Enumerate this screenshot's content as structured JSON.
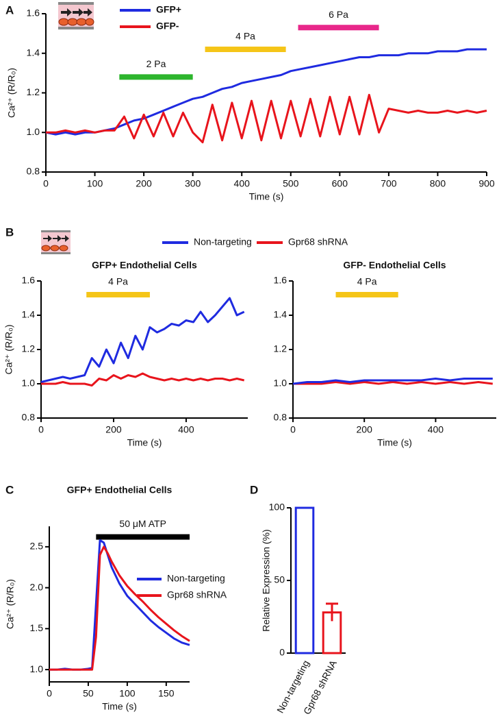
{
  "chart_data": [
    {
      "type": "line",
      "panel_label": "A",
      "ylabel": "Ca²⁺ (R/R₀)",
      "xlabel": "Time (s)",
      "xlim": [
        0,
        900
      ],
      "xticks": [
        0,
        100,
        200,
        300,
        400,
        500,
        600,
        700,
        800,
        900
      ],
      "ylim": [
        0.8,
        1.6
      ],
      "yticks": [
        0.8,
        {
          "value": 1.0,
          "label": "1.0"
        },
        1.2,
        1.4,
        1.6
      ],
      "x": [
        0,
        20,
        40,
        60,
        80,
        100,
        120,
        140,
        160,
        180,
        200,
        220,
        240,
        260,
        280,
        300,
        320,
        340,
        360,
        380,
        400,
        420,
        440,
        460,
        480,
        500,
        520,
        540,
        560,
        580,
        600,
        620,
        640,
        660,
        680,
        700,
        720,
        740,
        760,
        780,
        800,
        820,
        840,
        860,
        880,
        900
      ],
      "series": [
        {
          "name": "GFP+",
          "color": "#1f2be0",
          "values": [
            1.0,
            0.99,
            1.0,
            0.99,
            1.0,
            1.0,
            1.01,
            1.02,
            1.04,
            1.06,
            1.07,
            1.09,
            1.11,
            1.13,
            1.15,
            1.17,
            1.18,
            1.2,
            1.22,
            1.23,
            1.25,
            1.26,
            1.27,
            1.28,
            1.29,
            1.31,
            1.32,
            1.33,
            1.34,
            1.35,
            1.36,
            1.37,
            1.38,
            1.38,
            1.39,
            1.39,
            1.39,
            1.4,
            1.4,
            1.4,
            1.41,
            1.41,
            1.41,
            1.42,
            1.42,
            1.42
          ]
        },
        {
          "name": "GFP-",
          "color": "#e8141c",
          "values": [
            1.0,
            1.0,
            1.01,
            1.0,
            1.01,
            1.0,
            1.01,
            1.01,
            1.08,
            0.97,
            1.09,
            0.98,
            1.1,
            0.98,
            1.1,
            1.0,
            0.95,
            1.14,
            0.96,
            1.15,
            0.97,
            1.16,
            0.96,
            1.16,
            0.97,
            1.16,
            0.98,
            1.17,
            0.98,
            1.18,
            0.99,
            1.18,
            0.99,
            1.19,
            1.0,
            1.12,
            1.11,
            1.1,
            1.11,
            1.1,
            1.1,
            1.11,
            1.1,
            1.11,
            1.1,
            1.11
          ]
        }
      ],
      "annotations": [
        {
          "text": "2 Pa",
          "x": [
            150,
            300
          ],
          "y": 1.28,
          "color": "#2db52d"
        },
        {
          "text": "4 Pa",
          "x": [
            325,
            490
          ],
          "y": 1.42,
          "color": "#f5c518"
        },
        {
          "text": "6 Pa",
          "x": [
            515,
            680
          ],
          "y": 1.53,
          "color": "#e8278a"
        }
      ]
    },
    {
      "type": "line",
      "panel_label": "B",
      "title": "GFP+ Endothelial Cells",
      "ylabel": "Ca²⁺ (R/R₀)",
      "xlabel": "Time (s)",
      "xlim": [
        0,
        570
      ],
      "xticks": [
        0,
        200,
        400
      ],
      "ylim": [
        0.8,
        1.6
      ],
      "yticks": [
        0.8,
        {
          "value": 1.0,
          "label": "1.0"
        },
        1.2,
        1.4,
        1.6
      ],
      "x": [
        0,
        20,
        40,
        60,
        80,
        100,
        120,
        140,
        160,
        180,
        200,
        220,
        240,
        260,
        280,
        300,
        320,
        340,
        360,
        380,
        400,
        420,
        440,
        460,
        480,
        500,
        520,
        540,
        560
      ],
      "series": [
        {
          "name": "Non-targeting",
          "color": "#1f2be0",
          "values": [
            1.01,
            1.02,
            1.03,
            1.04,
            1.03,
            1.04,
            1.05,
            1.15,
            1.1,
            1.2,
            1.12,
            1.24,
            1.15,
            1.28,
            1.2,
            1.33,
            1.3,
            1.32,
            1.35,
            1.34,
            1.37,
            1.36,
            1.42,
            1.36,
            1.4,
            1.45,
            1.5,
            1.4,
            1.42
          ]
        },
        {
          "name": "Gpr68 shRNA",
          "color": "#e8141c",
          "values": [
            1.0,
            1.0,
            1.0,
            1.01,
            1.0,
            1.0,
            1.0,
            0.99,
            1.03,
            1.02,
            1.05,
            1.03,
            1.05,
            1.04,
            1.06,
            1.04,
            1.03,
            1.02,
            1.03,
            1.02,
            1.03,
            1.02,
            1.03,
            1.02,
            1.03,
            1.03,
            1.02,
            1.03,
            1.02
          ]
        }
      ],
      "annotations": [
        {
          "text": "4 Pa",
          "x": [
            125,
            300
          ],
          "y": 1.52,
          "color": "#f5c518"
        }
      ]
    },
    {
      "type": "line",
      "title": "GFP- Endothelial Cells",
      "xlabel": "Time (s)",
      "xlim": [
        0,
        570
      ],
      "xticks": [
        0,
        200,
        400
      ],
      "ylim": [
        0.8,
        1.6
      ],
      "yticks": [
        0.8,
        {
          "value": 1.0,
          "label": "1.0"
        },
        1.2,
        1.4,
        1.6
      ],
      "x": [
        0,
        40,
        80,
        120,
        160,
        200,
        240,
        280,
        320,
        360,
        400,
        440,
        480,
        520,
        560
      ],
      "series": [
        {
          "color": "#e8141c",
          "values": [
            1.0,
            1.0,
            1.0,
            1.01,
            1.0,
            1.01,
            1.0,
            1.01,
            1.0,
            1.01,
            1.0,
            1.01,
            1.0,
            1.01,
            1.0
          ]
        },
        {
          "color": "#1f2be0",
          "values": [
            1.0,
            1.01,
            1.01,
            1.02,
            1.01,
            1.02,
            1.02,
            1.02,
            1.02,
            1.02,
            1.03,
            1.02,
            1.03,
            1.03,
            1.03
          ]
        }
      ],
      "annotations": [
        {
          "text": "4 Pa",
          "x": [
            120,
            295
          ],
          "y": 1.52,
          "color": "#f5c518"
        }
      ]
    },
    {
      "type": "line",
      "panel_label": "C",
      "title": "GFP+ Endothelial Cells",
      "ylabel": "Ca²⁺ (R/R₀)",
      "xlabel": "Time (s)",
      "xlim": [
        0,
        180
      ],
      "xticks": [
        0,
        50,
        100,
        150
      ],
      "ylim": [
        0.85,
        2.75
      ],
      "yticks": [
        {
          "value": 1.0,
          "label": "1.0"
        },
        1.5,
        {
          "value": 2.0,
          "label": "2.0"
        },
        2.5
      ],
      "x": [
        0,
        10,
        20,
        30,
        40,
        50,
        55,
        60,
        65,
        70,
        75,
        80,
        90,
        100,
        110,
        120,
        130,
        140,
        150,
        160,
        170,
        180
      ],
      "series": [
        {
          "name": "Non-targeting",
          "color": "#1f2be0",
          "values": [
            1.0,
            1.0,
            1.01,
            1.0,
            1.0,
            1.01,
            1.02,
            1.8,
            2.58,
            2.55,
            2.4,
            2.25,
            2.05,
            1.9,
            1.8,
            1.7,
            1.6,
            1.52,
            1.45,
            1.38,
            1.33,
            1.3
          ]
        },
        {
          "name": "Gpr68 shRNA",
          "color": "#e8141c",
          "values": [
            1.0,
            1.0,
            1.0,
            1.0,
            1.0,
            1.0,
            1.0,
            1.4,
            2.4,
            2.5,
            2.42,
            2.32,
            2.15,
            2.02,
            1.92,
            1.83,
            1.73,
            1.64,
            1.56,
            1.48,
            1.41,
            1.35
          ]
        }
      ],
      "annotations": [
        {
          "text": "50 μM ATP",
          "x": [
            60,
            180
          ],
          "y": 2.62,
          "color": "#000000"
        }
      ]
    },
    {
      "type": "bar",
      "panel_label": "D",
      "ylabel": "Relative Expression (%)",
      "categories": [
        "Non-targeting",
        "Gpr68 shRNA"
      ],
      "values": [
        100,
        28
      ],
      "errors": [
        null,
        6
      ],
      "colors": [
        "#1f2be0",
        "#e8141c"
      ],
      "ylim": [
        0,
        100
      ],
      "yticks": [
        0,
        50,
        100
      ]
    }
  ]
}
